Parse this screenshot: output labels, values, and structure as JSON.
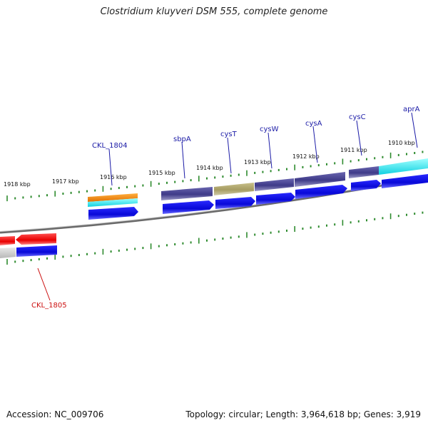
{
  "title": "Clostridium kluyveri DSM 555, complete genome",
  "footer": {
    "accession": "Accession: NC_009706",
    "summary": "Topology: circular; Length: 3,964,618 bp; Genes: 3,919"
  },
  "colors": {
    "backbone": "#7a7a7a",
    "tick": "#2e8b2e",
    "label_forward": "#1a1aa6",
    "label_reverse": "#cc1111",
    "gene_arrow": "#1010e0",
    "operon": "#4b4795"
  },
  "scale_labels": [
    "1918 kbp",
    "1917 kbp",
    "1916 kbp",
    "1915 kbp",
    "1914 kbp",
    "1913 kbp",
    "1912 kbp",
    "1911 kbp",
    "1910 kbp"
  ],
  "features": [
    {
      "id": "CKL_1804",
      "label": "CKL_1804",
      "strand": "forward",
      "labeled": true
    },
    {
      "id": "sbpA",
      "label": "sbpA",
      "strand": "forward",
      "labeled": true
    },
    {
      "id": "cysT",
      "label": "cysT",
      "strand": "forward",
      "labeled": true
    },
    {
      "id": "cysW",
      "label": "cysW",
      "strand": "forward",
      "labeled": true
    },
    {
      "id": "cysA",
      "label": "cysA",
      "strand": "forward",
      "labeled": true
    },
    {
      "id": "cysC",
      "label": "cysC",
      "strand": "forward",
      "labeled": true
    },
    {
      "id": "aprA",
      "label": "aprA",
      "strand": "forward",
      "labeled": true
    },
    {
      "id": "CKL_1805",
      "label": "CKL_1805",
      "strand": "reverse",
      "labeled": true
    },
    {
      "id": "left-gene",
      "label": "",
      "strand": "reverse",
      "labeled": false
    }
  ]
}
